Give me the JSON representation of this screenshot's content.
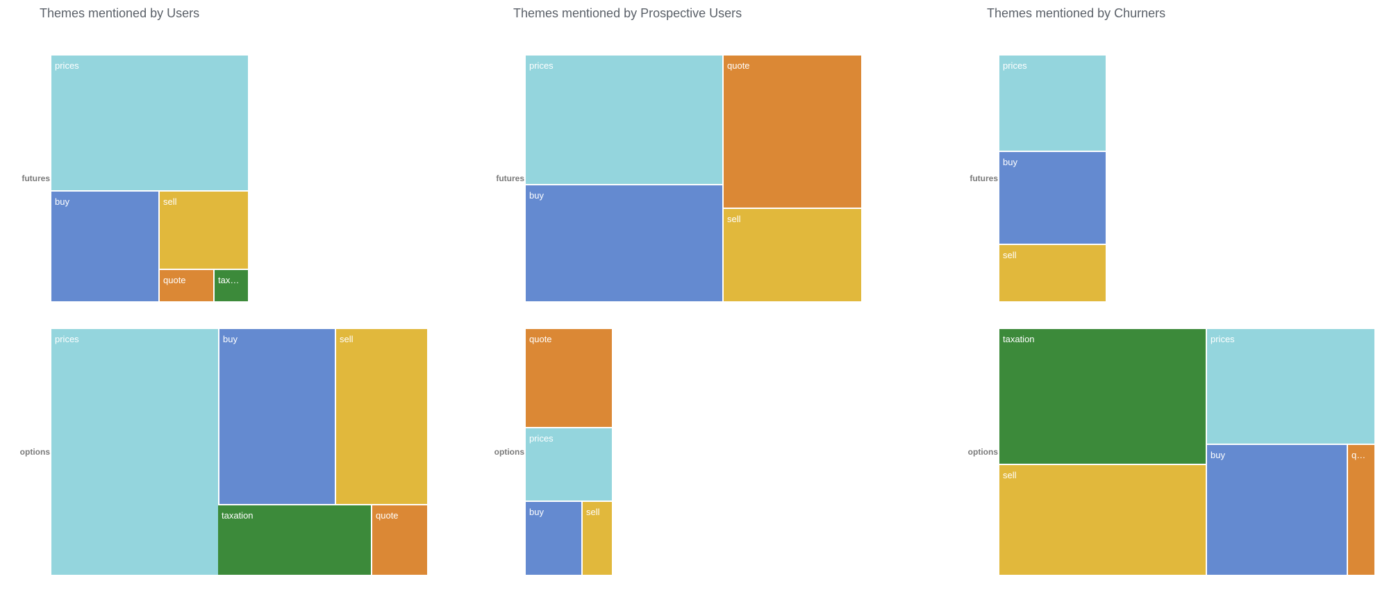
{
  "colors": {
    "prices": "#94D5DD",
    "buy": "#648AD0",
    "sell": "#E1B83C",
    "quote": "#DB8835",
    "taxation": "#3C8A3A"
  },
  "chart_data": [
    {
      "type": "treemap",
      "title": "Themes mentioned by Users",
      "rows": [
        {
          "label": "futures",
          "items": [
            {
              "name": "prices",
              "value": 34,
              "display": "prices"
            },
            {
              "name": "buy",
              "value": 14,
              "display": "buy"
            },
            {
              "name": "sell",
              "value": 11,
              "display": "sell"
            },
            {
              "name": "quote",
              "value": 3,
              "display": "quote"
            },
            {
              "name": "taxation",
              "value": 2.5,
              "display": "tax…"
            }
          ]
        },
        {
          "label": "options",
          "items": [
            {
              "name": "prices",
              "value": 53,
              "display": "prices"
            },
            {
              "name": "buy",
              "value": 26,
              "display": "buy"
            },
            {
              "name": "sell",
              "value": 21,
              "display": "sell"
            },
            {
              "name": "taxation",
              "value": 14,
              "display": "taxation"
            },
            {
              "name": "quote",
              "value": 5,
              "display": "quote"
            }
          ]
        }
      ]
    },
    {
      "type": "treemap",
      "title": "Themes mentioned by Prospective Users",
      "rows": [
        {
          "label": "futures",
          "items": [
            {
              "name": "prices",
              "value": 31,
              "display": "prices"
            },
            {
              "name": "buy",
              "value": 29,
              "display": "buy"
            },
            {
              "name": "quote",
              "value": 27,
              "display": "quote"
            },
            {
              "name": "sell",
              "value": 17,
              "display": "sell"
            }
          ]
        },
        {
          "label": "options",
          "items": [
            {
              "name": "quote",
              "value": 10,
              "display": "quote"
            },
            {
              "name": "prices",
              "value": 8,
              "display": "prices"
            },
            {
              "name": "buy",
              "value": 5,
              "display": "buy"
            },
            {
              "name": "sell",
              "value": 2.5,
              "display": "sell"
            }
          ]
        }
      ]
    },
    {
      "type": "treemap",
      "title": "Themes mentioned by Churners",
      "rows": [
        {
          "label": "futures",
          "items": [
            {
              "name": "prices",
              "value": 13,
              "display": "prices"
            },
            {
              "name": "buy",
              "value": 12.5,
              "display": "buy"
            },
            {
              "name": "sell",
              "value": 7.5,
              "display": "sell"
            }
          ]
        },
        {
          "label": "options",
          "items": [
            {
              "name": "taxation",
              "value": 30,
              "display": "taxation"
            },
            {
              "name": "sell",
              "value": 24,
              "display": "sell"
            },
            {
              "name": "prices",
              "value": 21,
              "display": "prices"
            },
            {
              "name": "buy",
              "value": 17.5,
              "display": "buy"
            },
            {
              "name": "quote",
              "value": 3.5,
              "display": "q…"
            }
          ]
        }
      ]
    }
  ]
}
